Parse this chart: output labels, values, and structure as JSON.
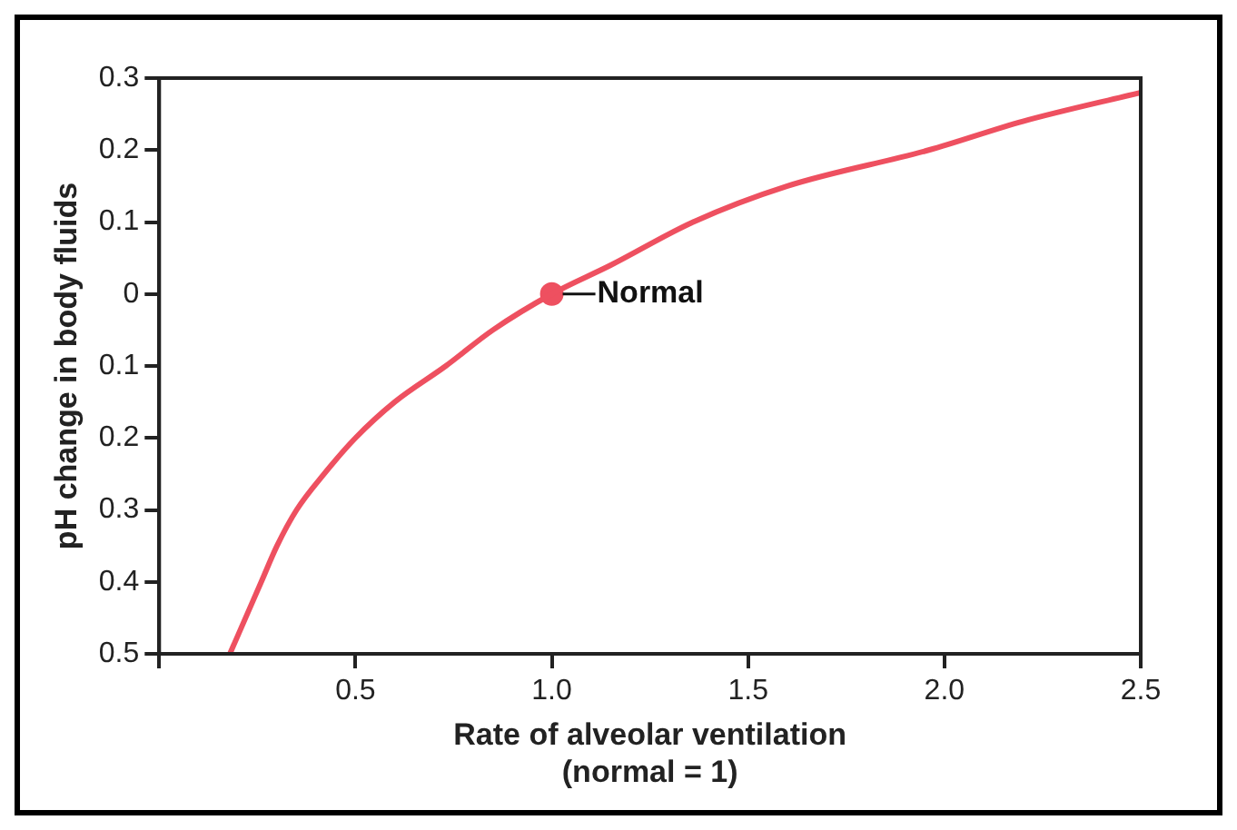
{
  "chart_data": {
    "type": "line",
    "xlabel": "Rate of alveolar ventilation\n(normal = 1)",
    "ylabel": "pH change in body fluids",
    "xlim": [
      0,
      2.5
    ],
    "xticks": [
      {
        "value": 0,
        "label": null
      },
      0.5,
      {
        "value": 1,
        "label": "1.0"
      },
      1.5,
      {
        "value": 2,
        "label": "2.0"
      },
      2.5
    ],
    "ylim": [
      -0.5,
      0.3
    ],
    "yticks": [
      {
        "value": -0.5,
        "label": "0.5"
      },
      {
        "value": -0.4,
        "label": "0.4"
      },
      {
        "value": -0.3,
        "label": "0.3"
      },
      {
        "value": -0.2,
        "label": "0.2"
      },
      {
        "value": -0.1,
        "label": "0.1"
      },
      0,
      0.1,
      0.2,
      0.3
    ],
    "grid": false,
    "legend": false,
    "marker": "none",
    "line_style": "solid",
    "series": [
      {
        "color": "#ee5060",
        "x": [
          0.18,
          0.22,
          0.26,
          0.3,
          0.35,
          0.42,
          0.5,
          0.6,
          0.73,
          0.85,
          1.0,
          1.15,
          1.36,
          1.6,
          1.96,
          2.2,
          2.5
        ],
        "values": [
          -0.5,
          -0.45,
          -0.4,
          -0.35,
          -0.3,
          -0.25,
          -0.2,
          -0.15,
          -0.1,
          -0.05,
          0,
          0.04,
          0.1,
          0.15,
          0.2,
          0.24,
          0.28
        ]
      },
      {
        "type": "scatter",
        "color": "#ee5060",
        "marker": "circle",
        "x": [
          1.0
        ],
        "values": [
          0
        ]
      }
    ],
    "annotations": [
      {
        "text": "Normal",
        "x": 1.0,
        "y": 0
      }
    ]
  }
}
